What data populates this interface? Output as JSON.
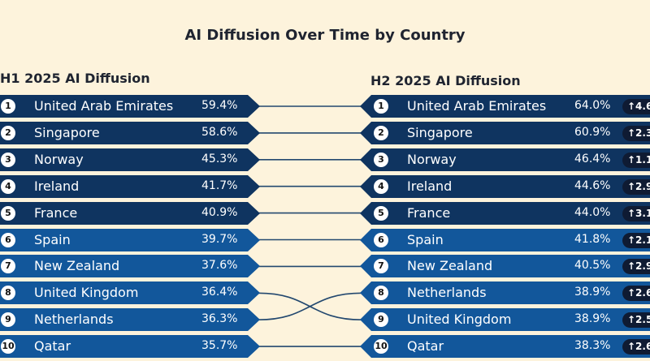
{
  "chart_data": {
    "type": "table",
    "title": "AI Diffusion Over Time by Country",
    "left_panel": {
      "title": "H1 2025 AI Diffusion",
      "rows": [
        {
          "rank": "1",
          "country": "United Arab Emirates",
          "value": "59.4%"
        },
        {
          "rank": "2",
          "country": "Singapore",
          "value": "58.6%"
        },
        {
          "rank": "3",
          "country": "Norway",
          "value": "45.3%"
        },
        {
          "rank": "4",
          "country": "Ireland",
          "value": "41.7%"
        },
        {
          "rank": "5",
          "country": "France",
          "value": "40.9%"
        },
        {
          "rank": "6",
          "country": "Spain",
          "value": "39.7%"
        },
        {
          "rank": "7",
          "country": "New Zealand",
          "value": "37.6%"
        },
        {
          "rank": "8",
          "country": "United Kingdom",
          "value": "36.4%"
        },
        {
          "rank": "9",
          "country": "Netherlands",
          "value": "36.3%"
        },
        {
          "rank": "10",
          "country": "Qatar",
          "value": "35.7%"
        }
      ]
    },
    "right_panel": {
      "title": "H2 2025 AI Diffusion",
      "rows": [
        {
          "rank": "1",
          "country": "United Arab Emirates",
          "value": "64.0%",
          "change": "↑4.6"
        },
        {
          "rank": "2",
          "country": "Singapore",
          "value": "60.9%",
          "change": "↑2.3"
        },
        {
          "rank": "3",
          "country": "Norway",
          "value": "46.4%",
          "change": "↑1.1"
        },
        {
          "rank": "4",
          "country": "Ireland",
          "value": "44.6%",
          "change": "↑2.9"
        },
        {
          "rank": "5",
          "country": "France",
          "value": "44.0%",
          "change": "↑3.1"
        },
        {
          "rank": "6",
          "country": "Spain",
          "value": "41.8%",
          "change": "↑2.1"
        },
        {
          "rank": "7",
          "country": "New Zealand",
          "value": "40.5%",
          "change": "↑2.9"
        },
        {
          "rank": "8",
          "country": "Netherlands",
          "value": "38.9%",
          "change": "↑2.6"
        },
        {
          "rank": "9",
          "country": "United Kingdom",
          "value": "38.9%",
          "change": "↑2.5"
        },
        {
          "rank": "10",
          "country": "Qatar",
          "value": "38.3%",
          "change": "↑2.6"
        }
      ]
    },
    "links": [
      [
        1,
        1
      ],
      [
        2,
        2
      ],
      [
        3,
        3
      ],
      [
        4,
        4
      ],
      [
        5,
        5
      ],
      [
        6,
        6
      ],
      [
        7,
        7
      ],
      [
        8,
        9
      ],
      [
        9,
        8
      ],
      [
        10,
        10
      ]
    ]
  },
  "colors": {
    "background": "#fdf3dc",
    "dark_row": "#0f3460",
    "mid_row": "#12579b",
    "link_line": "#23486f"
  }
}
